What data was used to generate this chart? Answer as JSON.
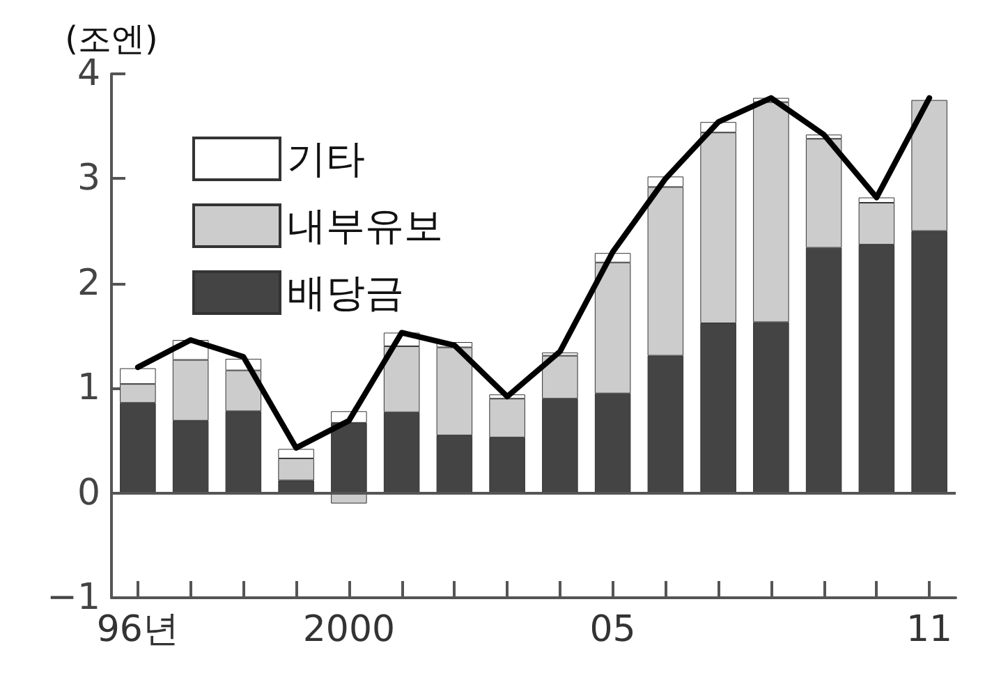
{
  "chart_data": {
    "type": "bar",
    "stacked": true,
    "ylabel": "(조엔)",
    "categories": [
      "96년",
      null,
      null,
      null,
      "2000",
      null,
      null,
      null,
      null,
      "05",
      null,
      null,
      null,
      null,
      null,
      "11"
    ],
    "series": [
      {
        "name": "배당금",
        "color": "#444444",
        "values": [
          0.86,
          0.69,
          0.78,
          0.12,
          0.67,
          0.77,
          0.55,
          0.53,
          0.9,
          0.95,
          1.31,
          1.62,
          1.63,
          2.34,
          2.37,
          2.5
        ]
      },
      {
        "name": "내부유보",
        "color": "#cccccc",
        "values": [
          0.18,
          0.58,
          0.39,
          0.21,
          -0.1,
          0.63,
          0.84,
          0.37,
          0.41,
          1.25,
          1.61,
          1.82,
          2.1,
          1.04,
          0.4,
          1.25
        ]
      },
      {
        "name": "기타",
        "color": "#ffffff",
        "values": [
          0.15,
          0.19,
          0.11,
          0.09,
          0.11,
          0.13,
          0.05,
          0.04,
          0.03,
          0.09,
          0.1,
          0.1,
          0.04,
          0.04,
          0.05,
          null
        ]
      },
      {
        "type": "line",
        "color": "#000000",
        "marker": "none",
        "values": [
          1.2,
          1.46,
          1.3,
          0.43,
          0.69,
          1.53,
          1.41,
          0.92,
          1.35,
          2.3,
          3.0,
          3.54,
          3.77,
          3.42,
          2.82,
          3.77
        ]
      }
    ],
    "ylim": [
      -1,
      4
    ],
    "yticks": [
      -1,
      0,
      1,
      2,
      3,
      4
    ],
    "grid": false,
    "legend": "top left",
    "ref_lines": [
      {
        "axis": "y",
        "value": 0,
        "color": "#555555"
      }
    ]
  }
}
